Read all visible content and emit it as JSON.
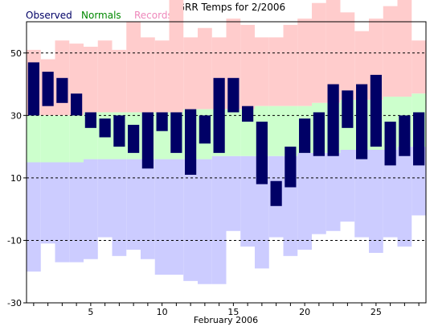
{
  "chart_data": {
    "type": "bar",
    "title": "KGRR Temps for 2/2006",
    "xlabel": "February 2006",
    "ylabel": "",
    "xlim": [
      0.5,
      28.5
    ],
    "ylim": [
      -30,
      60
    ],
    "y_ticks": [
      50,
      30,
      10,
      -10,
      -30
    ],
    "x_ticks": [
      5,
      10,
      15,
      20,
      25
    ],
    "gridlines_y": [
      50,
      30,
      10,
      -10
    ],
    "legend_placement": "top-left",
    "legend": [
      {
        "name": "Observed",
        "color": "#000066"
      },
      {
        "name": "Normals",
        "color": "#008800"
      },
      {
        "name": "Records",
        "color": "#ee88bb"
      }
    ],
    "colors": {
      "observed": "#000066",
      "normal_fill": "#ccffcc",
      "record_high_fill": "#ffcccc",
      "record_low_fill": "#ccccff",
      "gridline": "#000000"
    },
    "days": [
      1,
      2,
      3,
      4,
      5,
      6,
      7,
      8,
      9,
      10,
      11,
      12,
      13,
      14,
      15,
      16,
      17,
      18,
      19,
      20,
      21,
      22,
      23,
      24,
      25,
      26,
      27,
      28
    ],
    "series": [
      {
        "name": "Observed",
        "high": [
          47,
          44,
          42,
          37,
          31,
          29,
          30,
          27,
          31,
          31,
          31,
          32,
          30,
          42,
          42,
          33,
          28,
          9,
          20,
          29,
          31,
          40,
          38,
          40,
          43,
          28,
          30,
          31
        ],
        "low": [
          30,
          33,
          34,
          30,
          26,
          23,
          20,
          18,
          13,
          25,
          18,
          11,
          21,
          18,
          31,
          28,
          8,
          1,
          7,
          18,
          17,
          17,
          26,
          16,
          20,
          14,
          17,
          14
        ]
      },
      {
        "name": "Normals",
        "high": [
          30,
          30,
          30,
          30,
          31,
          31,
          31,
          31,
          31,
          31,
          31,
          32,
          32,
          32,
          32,
          32,
          33,
          33,
          33,
          33,
          34,
          34,
          35,
          35,
          35,
          36,
          36,
          37
        ],
        "low": [
          15,
          15,
          15,
          15,
          16,
          16,
          16,
          16,
          16,
          16,
          16,
          16,
          16,
          17,
          17,
          17,
          17,
          17,
          17,
          18,
          18,
          18,
          19,
          19,
          19,
          19,
          20,
          20
        ]
      },
      {
        "name": "Records",
        "high": [
          51,
          48,
          54,
          53,
          52,
          54,
          51,
          60,
          55,
          54,
          69,
          55,
          58,
          55,
          61,
          59,
          55,
          55,
          59,
          61,
          66,
          67,
          63,
          57,
          61,
          65,
          67,
          54
        ],
        "low": [
          -20,
          -11,
          -17,
          -17,
          -16,
          -9,
          -15,
          -13,
          -16,
          -21,
          -21,
          -23,
          -24,
          -24,
          -7,
          -12,
          -19,
          -9,
          -15,
          -13,
          -8,
          -7,
          -4,
          -9,
          -14,
          -9,
          -12,
          -2
        ]
      }
    ]
  }
}
